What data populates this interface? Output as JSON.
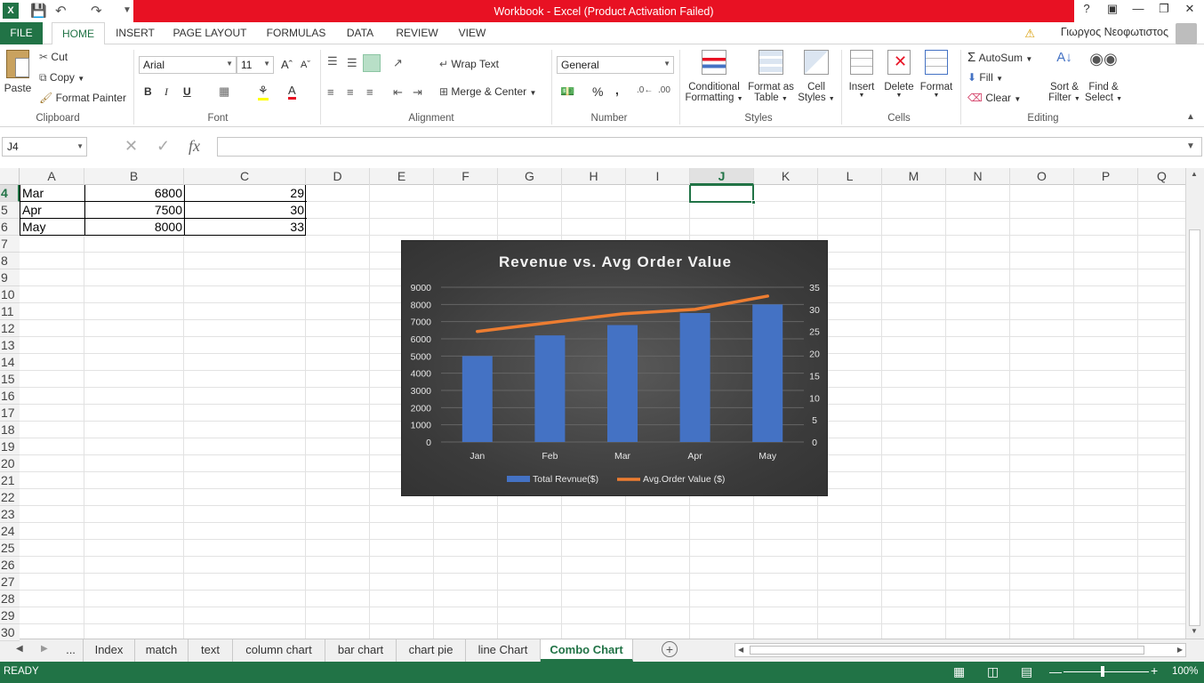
{
  "window": {
    "title": "Workbook -  Excel (Product Activation Failed)",
    "user": "Γιωργος Νεοφωτιστος"
  },
  "ribbon_tabs": [
    "FILE",
    "HOME",
    "INSERT",
    "PAGE LAYOUT",
    "FORMULAS",
    "DATA",
    "REVIEW",
    "VIEW"
  ],
  "clipboard": {
    "paste": "Paste",
    "cut": "Cut",
    "copy": "Copy",
    "format_painter": "Format Painter",
    "label": "Clipboard"
  },
  "font": {
    "name": "Arial",
    "size": "11",
    "label": "Font",
    "bold": "B",
    "italic": "I",
    "underline": "U"
  },
  "alignment": {
    "wrap_text": "Wrap Text",
    "merge_center": "Merge & Center",
    "label": "Alignment"
  },
  "number": {
    "format": "General",
    "label": "Number",
    "percent": "%",
    "comma": ","
  },
  "styles": {
    "conditional_line1": "Conditional",
    "conditional_line2": "Formatting",
    "format_table_line1": "Format as",
    "format_table_line2": "Table",
    "cell_styles_line1": "Cell",
    "cell_styles_line2": "Styles",
    "label": "Styles"
  },
  "cells": {
    "insert": "Insert",
    "delete": "Delete",
    "format": "Format",
    "label": "Cells"
  },
  "editing": {
    "autosum": "AutoSum",
    "fill": "Fill",
    "clear": "Clear",
    "sort_line1": "Sort &",
    "sort_line2": "Filter",
    "find_line1": "Find &",
    "find_line2": "Select",
    "label": "Editing"
  },
  "formula_bar": {
    "name_box": "J4",
    "fx": "fx",
    "value": ""
  },
  "columns": [
    "A",
    "B",
    "C",
    "D",
    "E",
    "F",
    "G",
    "H",
    "I",
    "J",
    "K",
    "L",
    "M",
    "N",
    "O",
    "P",
    "Q"
  ],
  "rows": [
    "4",
    "5",
    "6",
    "7",
    "8",
    "9",
    "10",
    "11",
    "12",
    "13",
    "14",
    "15",
    "16",
    "17",
    "18",
    "19",
    "20",
    "21",
    "22",
    "23",
    "24",
    "25",
    "26",
    "27",
    "28",
    "29",
    "30"
  ],
  "table": [
    {
      "month": "Mar",
      "revenue": "6800",
      "aov": "29"
    },
    {
      "month": "Apr",
      "revenue": "7500",
      "aov": "30"
    },
    {
      "month": "May",
      "revenue": "8000",
      "aov": "33"
    }
  ],
  "sheet_tabs": [
    "...",
    "Index",
    "match",
    "text",
    "column chart",
    "bar chart",
    "chart pie",
    "line Chart",
    "Combo Chart"
  ],
  "active_sheet": "Combo Chart",
  "status": {
    "ready": "READY",
    "zoom": "100%"
  },
  "colors": {
    "excel_green": "#217346",
    "title_red": "#e81123",
    "bar_blue": "#4472c4",
    "line_orange": "#ed7d31"
  },
  "chart_data": {
    "type": "bar",
    "title": "Revenue vs. Avg Order Value",
    "categories": [
      "Jan",
      "Feb",
      "Mar",
      "Apr",
      "May"
    ],
    "series": [
      {
        "name": "Total Revnue($)",
        "type": "bar",
        "axis": "primary",
        "values": [
          5000,
          6200,
          6800,
          7500,
          8000
        ]
      },
      {
        "name": "Avg.Order Value ($)",
        "type": "line",
        "axis": "secondary",
        "values": [
          25,
          27,
          29,
          30,
          33
        ]
      }
    ],
    "ylim": [
      0,
      9000
    ],
    "y_ticks": [
      "0",
      "1000",
      "2000",
      "3000",
      "4000",
      "5000",
      "6000",
      "7000",
      "8000",
      "9000"
    ],
    "y2lim": [
      0,
      35
    ],
    "y2_ticks": [
      "0",
      "5",
      "10",
      "15",
      "20",
      "25",
      "30",
      "35"
    ],
    "grid": true,
    "legend": "bottom"
  }
}
